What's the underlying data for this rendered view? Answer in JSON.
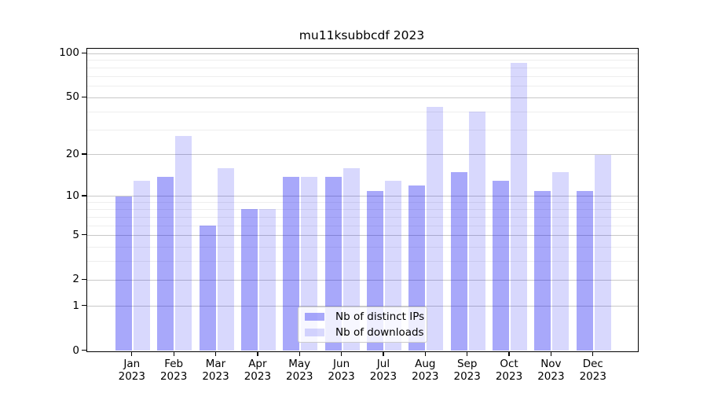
{
  "chart_data": {
    "type": "bar",
    "title": "mu11ksubbcdf 2023",
    "y_scale": "log10(1+y)",
    "months": [
      "Jan",
      "Feb",
      "Mar",
      "Apr",
      "May",
      "Jun",
      "Jul",
      "Aug",
      "Sep",
      "Oct",
      "Nov",
      "Dec"
    ],
    "year": "2023",
    "categories": [
      "Jan 2023",
      "Feb 2023",
      "Mar 2023",
      "Apr 2023",
      "May 2023",
      "Jun 2023",
      "Jul 2023",
      "Aug 2023",
      "Sep 2023",
      "Oct 2023",
      "Nov 2023",
      "Dec 2023"
    ],
    "series": [
      {
        "name": "Nb of distinct IPs",
        "color_hex": "#aaaafa",
        "color_rgba": "rgba(5,5,240,0.35)",
        "values": [
          10,
          14,
          6,
          8,
          14,
          14,
          11,
          12,
          15,
          13,
          11,
          11
        ]
      },
      {
        "name": "Nb of downloads",
        "color_hex": "#d9d9f9",
        "color_rgba": "rgba(5,5,240,0.155)",
        "values": [
          13,
          27,
          16,
          8,
          14,
          16,
          13,
          43,
          40,
          86,
          15,
          20
        ]
      }
    ],
    "y_ticks": [
      {
        "label": "0",
        "value": 0
      },
      {
        "label": "1",
        "value": 1
      },
      {
        "label": "2",
        "value": 2
      },
      {
        "label": "5",
        "value": 5
      },
      {
        "label": "10",
        "value": 10
      },
      {
        "label": "20",
        "value": 20
      },
      {
        "label": "50",
        "value": 50
      },
      {
        "label": "100",
        "value": 100
      }
    ],
    "y_minor_gridlines": [
      3,
      4,
      6,
      7,
      8,
      9,
      30,
      40,
      60,
      70,
      80,
      90
    ],
    "ylim": [
      0,
      108
    ],
    "grid": true,
    "legend": {
      "position": "lower center",
      "items": [
        "Nb of distinct IPs",
        "Nb of downloads"
      ]
    }
  },
  "colors": {
    "major_grid": "#c8c8c8",
    "minor_grid": "#eeeeee",
    "axis": "#000000",
    "legend_border": "#cccccc",
    "legend_background": "rgba(255,255,255,0.8)",
    "figure_background": "#ffffff"
  }
}
